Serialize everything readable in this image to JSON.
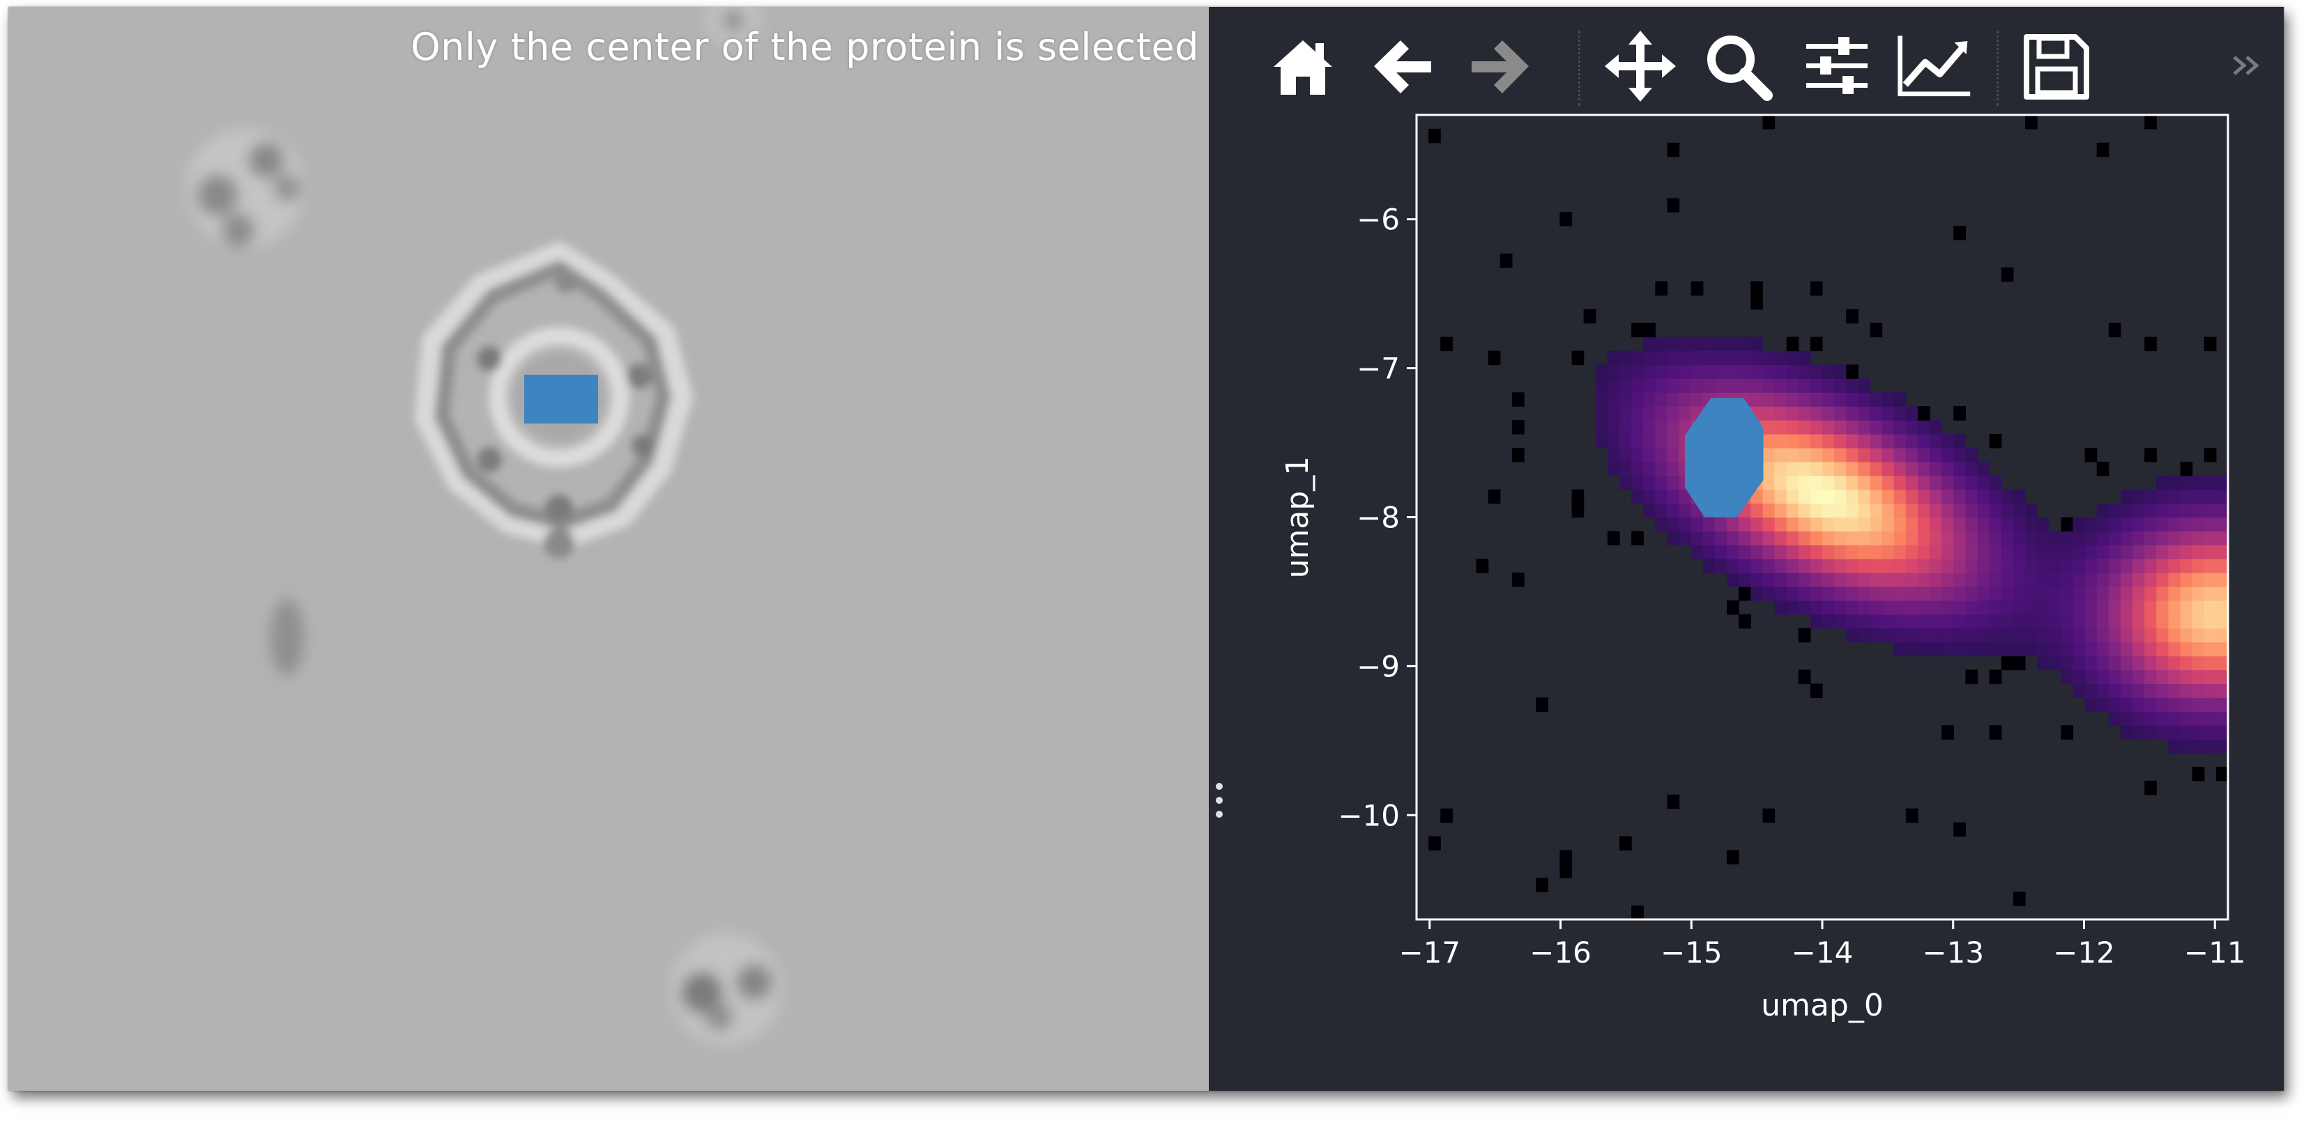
{
  "caption": "Only the center of the protein is selected",
  "toolbar": {
    "buttons": [
      {
        "name": "home-button",
        "icon": "home-icon",
        "enabled": true
      },
      {
        "name": "back-button",
        "icon": "arrow-left-icon",
        "enabled": true
      },
      {
        "name": "forward-button",
        "icon": "arrow-right-icon",
        "enabled": false
      },
      {
        "name": "pan-button",
        "icon": "move-arrows-icon",
        "enabled": true
      },
      {
        "name": "zoom-button",
        "icon": "magnifier-icon",
        "enabled": true
      },
      {
        "name": "configure-subplots-button",
        "icon": "sliders-icon",
        "enabled": true
      },
      {
        "name": "edit-axes-button",
        "icon": "line-chart-icon",
        "enabled": true
      },
      {
        "name": "save-button",
        "icon": "floppy-disk-icon",
        "enabled": true
      }
    ],
    "more_icon": "double-chevron-right-icon"
  },
  "colors": {
    "panel_bg": "#262931",
    "viewer_bg": "#b3b3b3",
    "selection": "#3d84c0",
    "icon": "#ffffff",
    "icon_disabled": "#8a8a8a",
    "colormap": "magma"
  },
  "chart_data": {
    "type": "heatmap",
    "title": "",
    "xlabel": "umap_0",
    "ylabel": "umap_1",
    "xlim": [
      -17.1,
      -10.9
    ],
    "ylim": [
      -10.7,
      -5.3
    ],
    "xticks": [
      -17,
      -16,
      -15,
      -14,
      -13,
      -12,
      -11
    ],
    "yticks": [
      -6,
      -7,
      -8,
      -9,
      -10
    ],
    "xtick_labels": [
      "−17",
      "−16",
      "−15",
      "−14",
      "−13",
      "−12",
      "−11"
    ],
    "ytick_labels": [
      "−6",
      "−7",
      "−8",
      "−9",
      "−10"
    ],
    "bins": [
      68,
      58
    ],
    "grid": false,
    "clusters": [
      {
        "center": [
          -14.0,
          -7.85
        ],
        "sx": 0.75,
        "sy": 0.45,
        "rho": -0.55,
        "peak": 1.0,
        "spread": 1.6
      },
      {
        "center": [
          -11.0,
          -8.65
        ],
        "sx": 0.55,
        "sy": 0.4,
        "rho": 0.0,
        "peak": 0.9,
        "spread": 1.5
      }
    ],
    "selection": {
      "x_range": [
        -15.05,
        -14.45
      ],
      "y_range": [
        -8.0,
        -7.2
      ],
      "color": "#3d84c0"
    }
  }
}
